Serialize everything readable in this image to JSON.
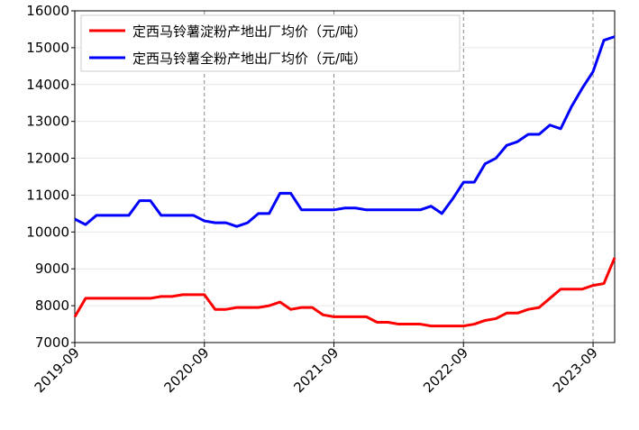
{
  "chart_data": {
    "type": "line",
    "x": [
      "2019-09",
      "2019-10",
      "2019-11",
      "2019-12",
      "2020-01",
      "2020-02",
      "2020-03",
      "2020-04",
      "2020-05",
      "2020-06",
      "2020-07",
      "2020-08",
      "2020-09",
      "2020-10",
      "2020-11",
      "2020-12",
      "2021-01",
      "2021-02",
      "2021-03",
      "2021-04",
      "2021-05",
      "2021-06",
      "2021-07",
      "2021-08",
      "2021-09",
      "2021-10",
      "2021-11",
      "2021-12",
      "2022-01",
      "2022-02",
      "2022-03",
      "2022-04",
      "2022-05",
      "2022-06",
      "2022-07",
      "2022-08",
      "2022-09",
      "2022-10",
      "2022-11",
      "2022-12",
      "2023-01",
      "2023-02",
      "2023-03",
      "2023-04",
      "2023-05",
      "2023-06",
      "2023-07",
      "2023-08",
      "2023-09",
      "2023-10",
      "2023-11"
    ],
    "series": [
      {
        "name": "定西马铃薯淀粉产地出厂均价（元/吨）",
        "color": "#ff0000",
        "values": [
          7700,
          8200,
          8200,
          8200,
          8200,
          8200,
          8200,
          8200,
          8250,
          8250,
          8300,
          8300,
          8300,
          7900,
          7900,
          7950,
          7950,
          7950,
          8000,
          8100,
          7900,
          7950,
          7950,
          7750,
          7700,
          7700,
          7700,
          7700,
          7550,
          7550,
          7500,
          7500,
          7500,
          7450,
          7450,
          7450,
          7450,
          7500,
          7600,
          7650,
          7800,
          7800,
          7900,
          7950,
          8200,
          8450,
          8450,
          8450,
          8550,
          8600,
          9300
        ]
      },
      {
        "name": "定西马铃薯全粉产地出厂均价（元/吨）",
        "color": "#0000ff",
        "values": [
          10350,
          10200,
          10450,
          10450,
          10450,
          10450,
          10850,
          10850,
          10450,
          10450,
          10450,
          10450,
          10300,
          10250,
          10250,
          10150,
          10250,
          10500,
          10500,
          11050,
          11050,
          10600,
          10600,
          10600,
          10600,
          10650,
          10650,
          10600,
          10600,
          10600,
          10600,
          10600,
          10600,
          10700,
          10500,
          10900,
          11350,
          11350,
          11850,
          12000,
          12350,
          12450,
          12650,
          12650,
          12900,
          12800,
          13400,
          13900,
          14350,
          15200,
          15300
        ]
      }
    ],
    "xticks": [
      "2019-09",
      "2020-09",
      "2021-09",
      "2022-09",
      "2023-09"
    ],
    "ylim": [
      7000,
      16000
    ],
    "yticks": [
      7000,
      8000,
      9000,
      10000,
      11000,
      12000,
      13000,
      14000,
      15000,
      16000
    ],
    "grid": true,
    "legend": "upper left"
  }
}
